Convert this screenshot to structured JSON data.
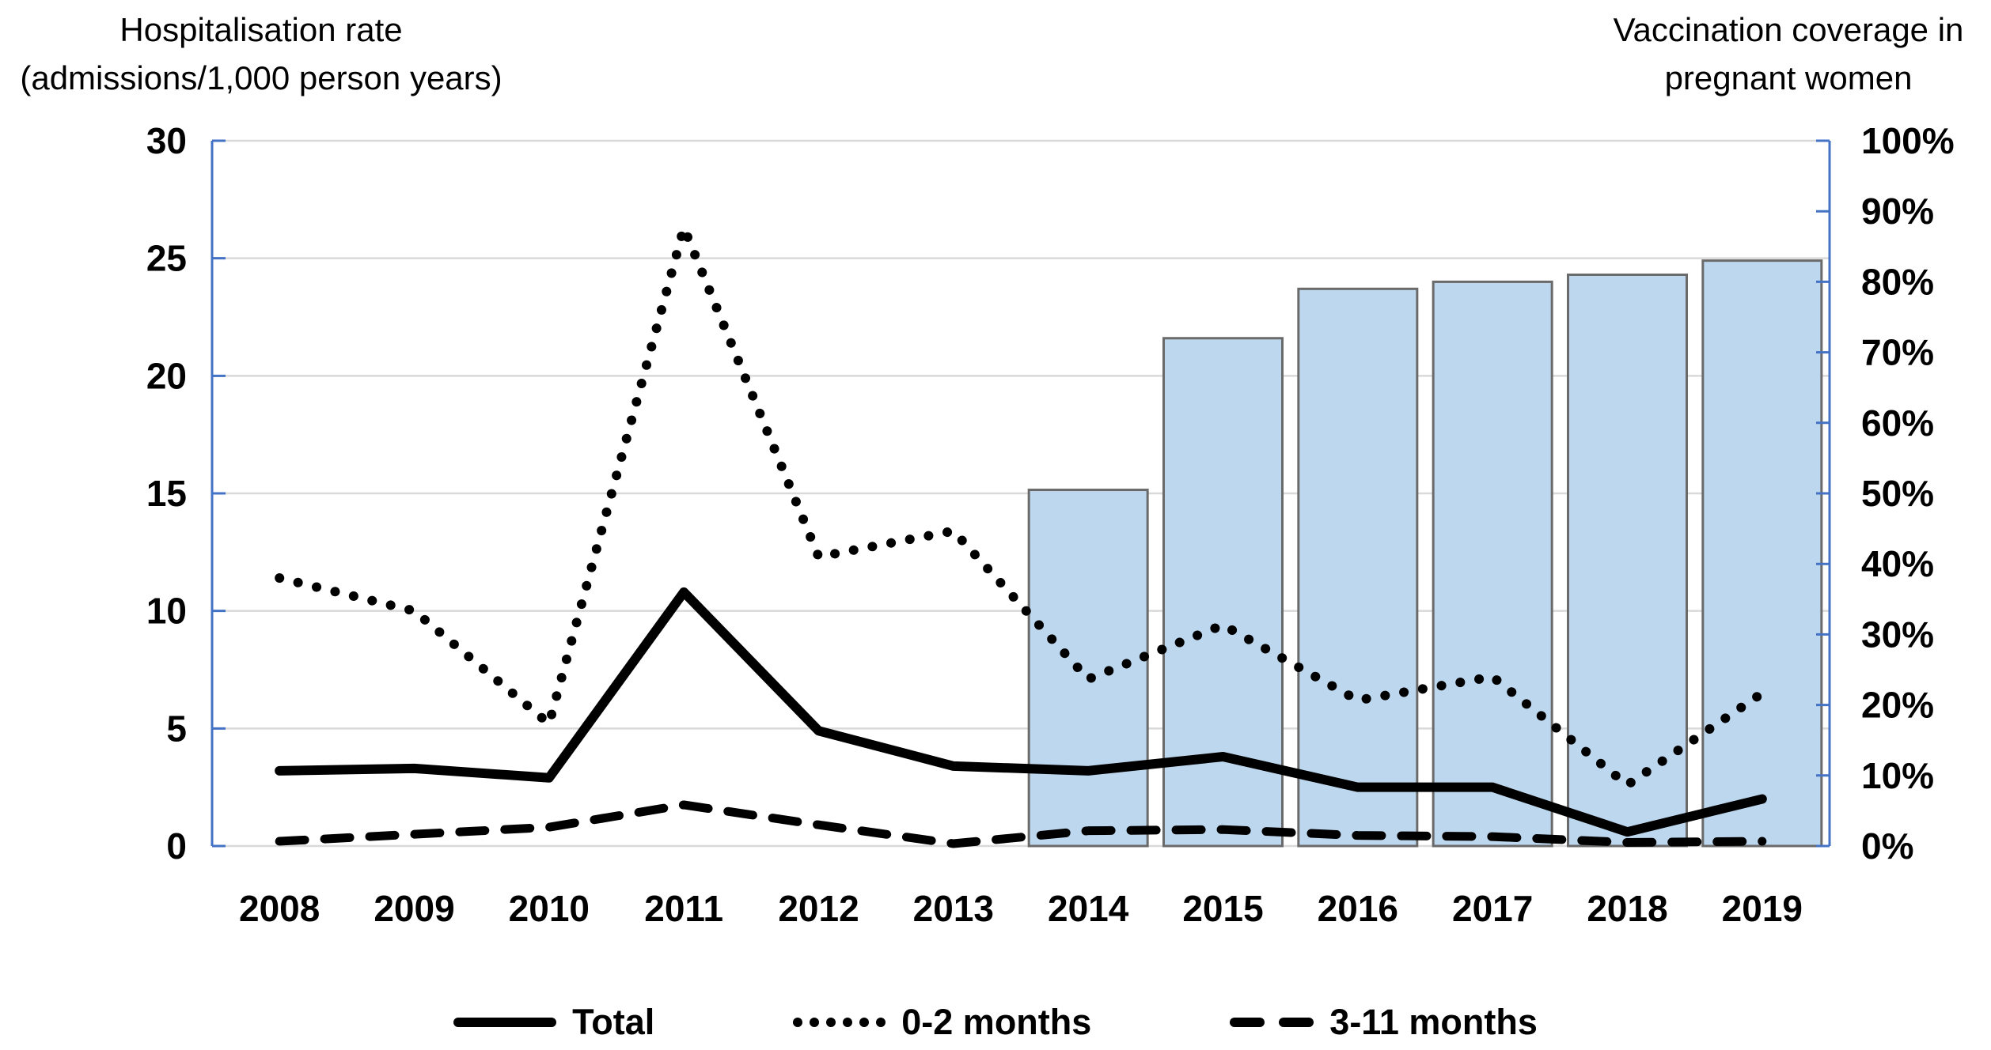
{
  "titles": {
    "left_line1": "Hospitalisation rate",
    "left_line2": "(admissions/1,000 person years)",
    "right_line1": "Vaccination coverage in",
    "right_line2": "pregnant women"
  },
  "legend": [
    {
      "label": "Total",
      "style": "solid"
    },
    {
      "label": "0-2 months",
      "style": "dotted"
    },
    {
      "label": "3-11 months",
      "style": "dashed"
    }
  ],
  "colors": {
    "bar_fill": "#BDD7EE",
    "bar_border": "#6A6A6A",
    "axis": "#4472C4",
    "gridline": "#D9D9D9",
    "line": "#000000",
    "text": "#000000"
  },
  "chart_data": {
    "type": "combo-bar-line",
    "categories": [
      "2008",
      "2009",
      "2010",
      "2011",
      "2012",
      "2013",
      "2014",
      "2015",
      "2016",
      "2017",
      "2018",
      "2019"
    ],
    "left_axis": {
      "title": "Hospitalisation rate (admissions/1,000 person years)",
      "min": 0,
      "max": 30,
      "step": 5,
      "tick_labels": [
        "0",
        "5",
        "10",
        "15",
        "20",
        "25",
        "30"
      ]
    },
    "right_axis": {
      "title": "Vaccination coverage in pregnant women",
      "min": 0,
      "max": 100,
      "step": 10,
      "tick_labels": [
        "0%",
        "10%",
        "20%",
        "30%",
        "40%",
        "50%",
        "60%",
        "70%",
        "80%",
        "90%",
        "100%"
      ]
    },
    "grid": true,
    "legend_position": "bottom",
    "series": [
      {
        "name": "Total",
        "type": "line",
        "style": "solid",
        "axis": "left",
        "values": [
          3.2,
          3.3,
          2.9,
          10.8,
          4.9,
          3.4,
          3.2,
          3.8,
          2.5,
          2.5,
          0.6,
          2.0
        ]
      },
      {
        "name": "0-2 months",
        "type": "line",
        "style": "dotted",
        "axis": "left",
        "values": [
          11.4,
          10.0,
          5.2,
          26.3,
          12.3,
          13.4,
          7.1,
          9.4,
          6.2,
          7.2,
          2.6,
          6.5
        ]
      },
      {
        "name": "3-11 months",
        "type": "line",
        "style": "dashed",
        "axis": "left",
        "values": [
          0.2,
          0.5,
          0.8,
          1.75,
          0.9,
          0.1,
          0.65,
          0.7,
          0.45,
          0.4,
          0.15,
          0.2
        ]
      },
      {
        "name": "Vaccination coverage in pregnant women",
        "type": "bar",
        "axis": "right",
        "values_percent": [
          null,
          null,
          null,
          null,
          null,
          null,
          50.5,
          72,
          79,
          80,
          81,
          83
        ]
      }
    ]
  }
}
